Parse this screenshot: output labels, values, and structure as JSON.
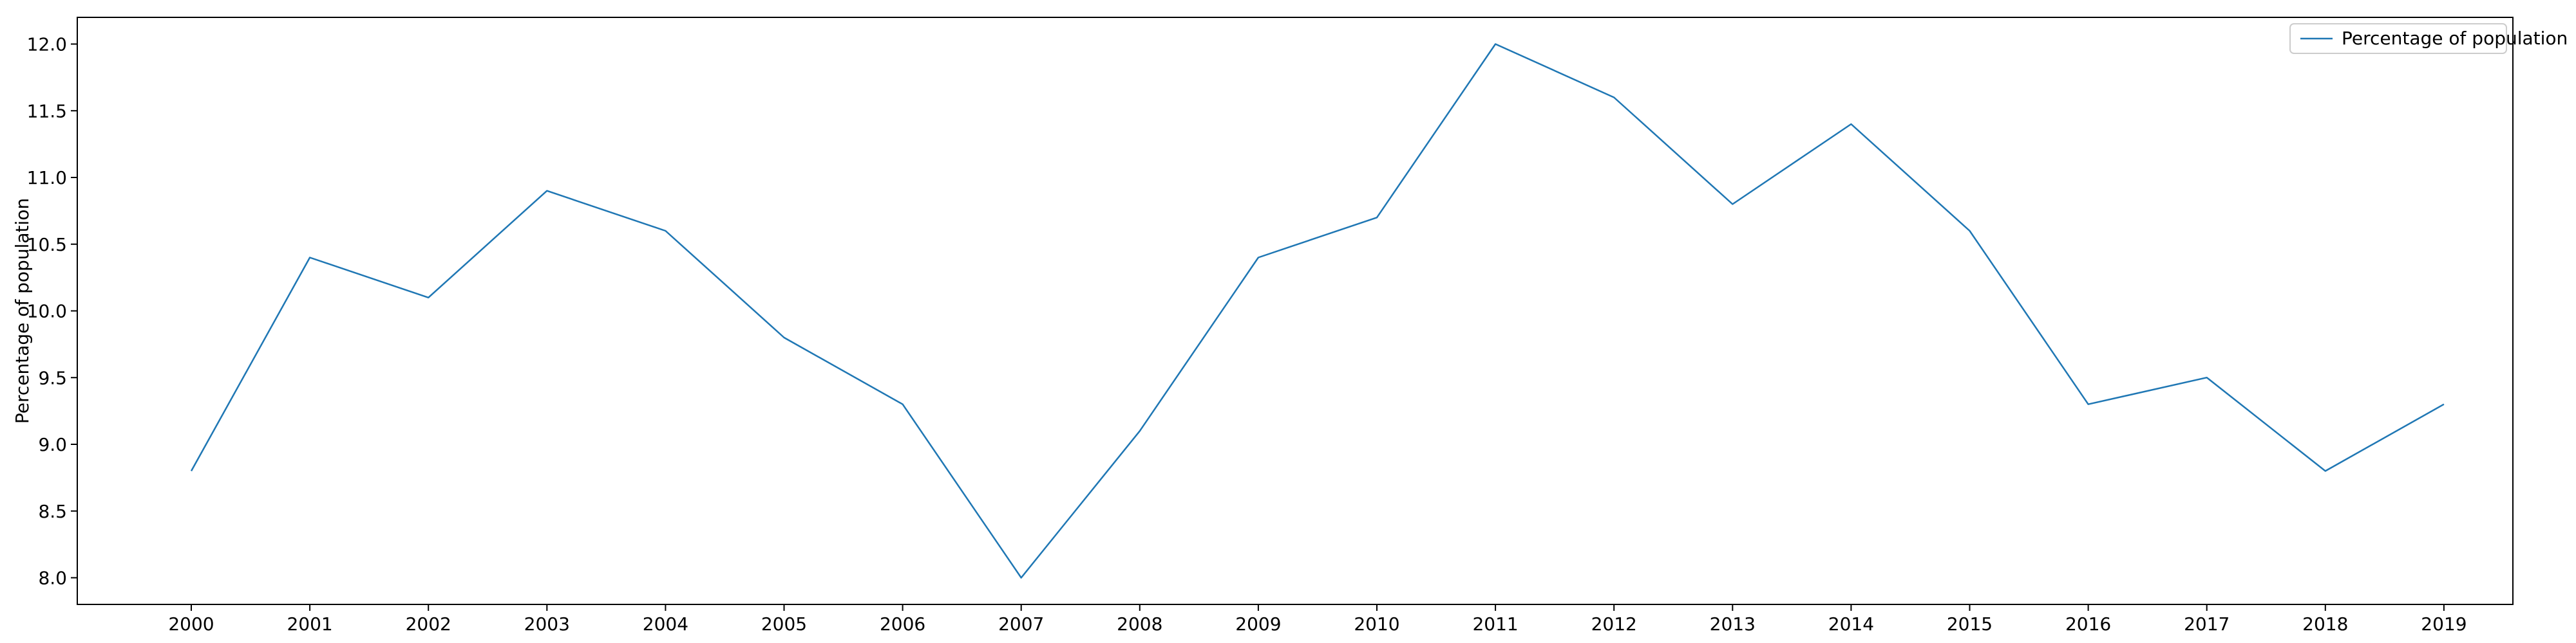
{
  "chart_data": {
    "type": "line",
    "title": "",
    "xlabel": "",
    "ylabel": "Percentage of population",
    "x": [
      "2000",
      "2001",
      "2002",
      "2003",
      "2004",
      "2005",
      "2006",
      "2007",
      "2008",
      "2009",
      "2010",
      "2011",
      "2012",
      "2013",
      "2014",
      "2015",
      "2016",
      "2017",
      "2018",
      "2019"
    ],
    "series": [
      {
        "name": "Percentage of population",
        "color": "#1f77b4",
        "values": [
          8.8,
          10.4,
          10.1,
          10.9,
          10.6,
          9.8,
          9.3,
          8.0,
          9.1,
          10.4,
          10.7,
          12.0,
          11.6,
          10.8,
          11.4,
          10.6,
          9.3,
          9.5,
          8.8,
          9.3
        ]
      }
    ],
    "ylim": [
      7.8,
      12.2
    ],
    "yticks": [
      "8.0",
      "8.5",
      "9.0",
      "9.5",
      "10.0",
      "10.5",
      "11.0",
      "11.5",
      "12.0"
    ],
    "grid": false,
    "legend_position": "top-right"
  }
}
